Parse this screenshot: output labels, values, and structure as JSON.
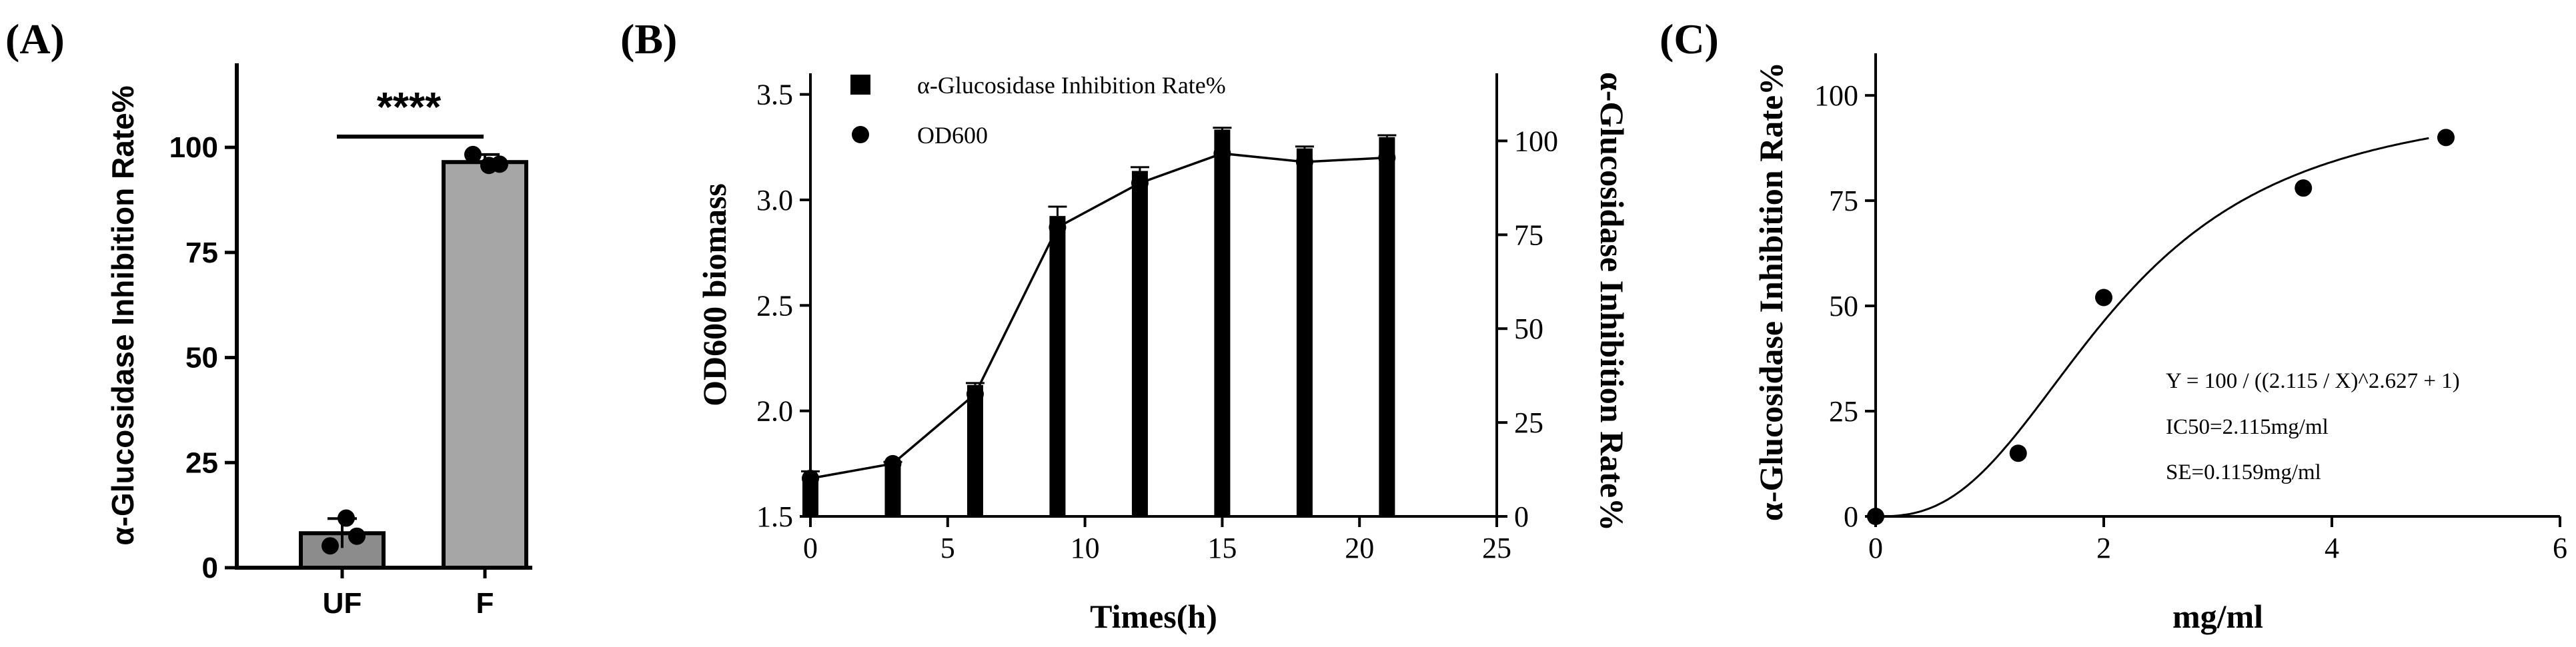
{
  "figure_labels": [
    "(A)",
    "(B)",
    "(C)"
  ],
  "colors": {
    "ink": "#000000",
    "bar_gray": "#a6a6a6",
    "bar_dark": "#000000"
  },
  "chart_data": [
    {
      "panel": "(A)",
      "type": "bar",
      "categories": [
        "UF",
        "F"
      ],
      "values": [
        8.2,
        96.5
      ],
      "errors": [
        3.5,
        1.8
      ],
      "points": [
        [
          5.2,
          11.8,
          7.5
        ],
        [
          98.3,
          95.7,
          96.0
        ]
      ],
      "ylabel": "α-Glucosidase Inhibition Rate%",
      "xlabel": "",
      "ylim": [
        0,
        120
      ],
      "yticks": [
        0,
        25,
        50,
        75,
        100
      ],
      "significance": "****"
    },
    {
      "panel": "(B)",
      "type": "bar+line",
      "xlabel": "Times(h)",
      "ylabel": "OD600 biomass",
      "ylabel_right": "α-Glucosidase Inhibition Rate%",
      "xlim": [
        0,
        25
      ],
      "xticks": [
        0,
        5,
        10,
        15,
        20,
        25
      ],
      "ylim_left": [
        1.5,
        3.6
      ],
      "yticks_left": [
        "1.5",
        "2.0",
        "2.5",
        "3.0",
        "3.5"
      ],
      "ylim_right": [
        0,
        118
      ],
      "yticks_right": [
        0,
        25,
        50,
        75,
        100
      ],
      "legend": [
        "α-Glucosidase Inhibition Rate%",
        "OD600"
      ],
      "series": [
        {
          "name": "α-Glucosidase Inhibition Rate%",
          "axis": "right",
          "kind": "bar",
          "x": [
            0,
            3,
            6,
            9,
            12,
            15,
            18,
            21
          ],
          "values": [
            10,
            14,
            35,
            80,
            92,
            103,
            98,
            101
          ],
          "errors": [
            2,
            0.5,
            0.5,
            2.5,
            1,
            0.5,
            0.5,
            0.5
          ]
        },
        {
          "name": "OD600",
          "axis": "left",
          "kind": "line",
          "x": [
            0,
            3,
            6,
            9,
            12,
            15,
            18,
            21
          ],
          "values": [
            1.68,
            1.75,
            2.08,
            2.87,
            3.08,
            3.22,
            3.18,
            3.2
          ]
        }
      ]
    },
    {
      "panel": "(C)",
      "type": "scatter",
      "xlabel": "mg/ml",
      "ylabel": "α-Glucosidase Inhibition Rate%",
      "xlim": [
        0,
        6
      ],
      "xticks": [
        0,
        2,
        4,
        6
      ],
      "ylim": [
        0,
        110
      ],
      "yticks": [
        0,
        25,
        50,
        75,
        100
      ],
      "x": [
        0,
        1.25,
        2,
        3.75,
        5
      ],
      "y": [
        0,
        15,
        52,
        78,
        90
      ],
      "fit": {
        "ic50": 2.115,
        "hill": 2.627,
        "top": 100
      },
      "annotations": [
        "Y = 100 / ((2.115 / X)^2.627 + 1)",
        "IC50=2.115mg/ml",
        "SE=0.1159mg/ml"
      ]
    }
  ]
}
